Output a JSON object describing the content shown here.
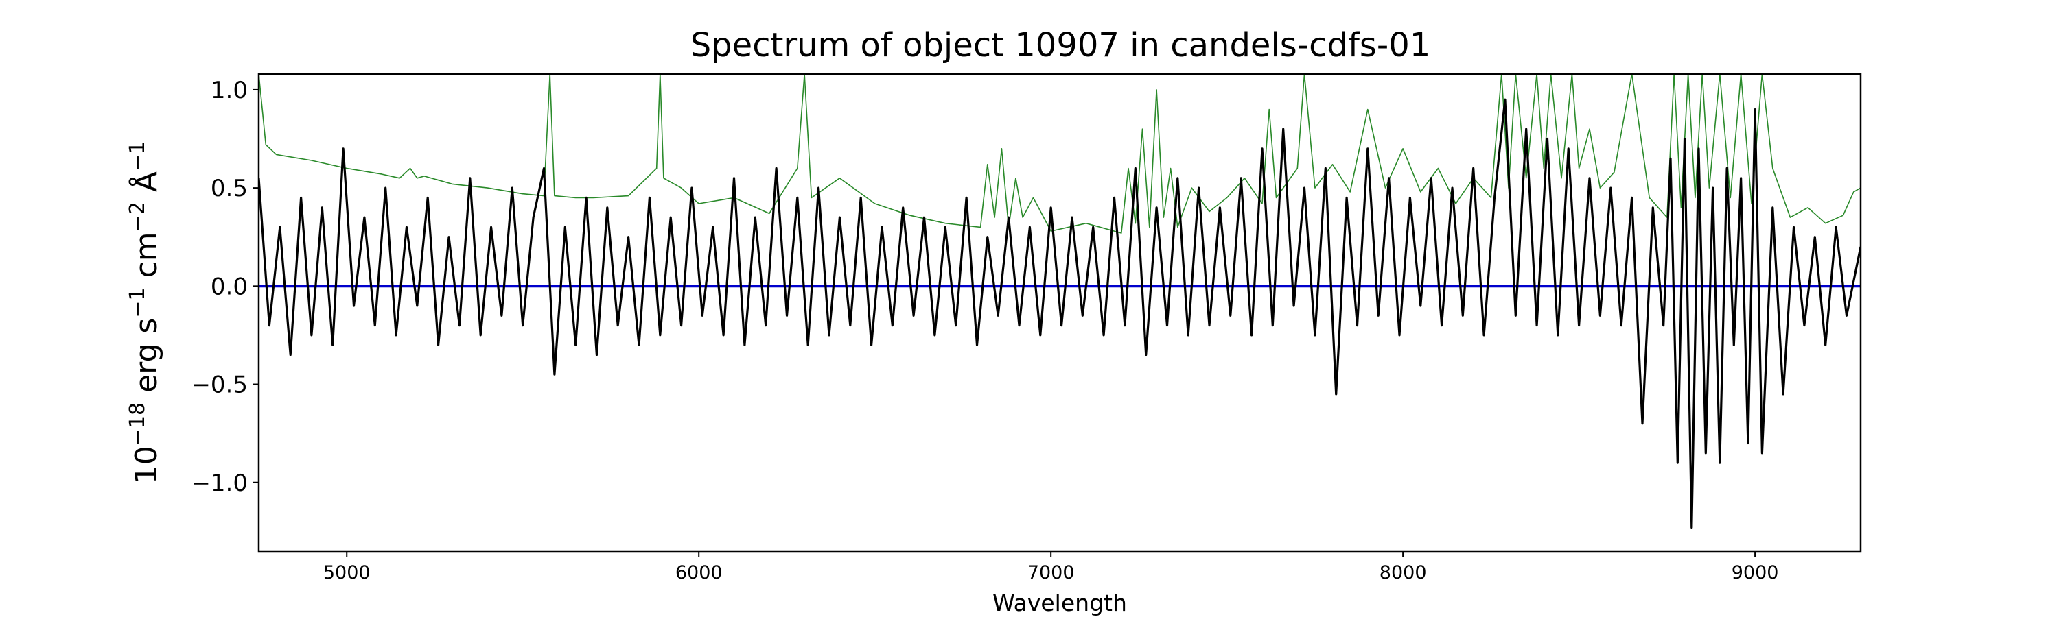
{
  "chart_data": {
    "type": "line",
    "title": "Spectrum of object 10907 in candels-cdfs-01",
    "xlabel": "Wavelength",
    "ylabel": {
      "prefix": "10",
      "exp1": "−18",
      "mid1": " erg s",
      "exp2": "−1",
      "mid2": " cm",
      "exp3": "−2",
      "mid3": " Å",
      "exp4": "−1"
    },
    "xlim": [
      4750,
      9300
    ],
    "ylim": [
      -1.35,
      1.08
    ],
    "x_ticks": [
      5000,
      6000,
      7000,
      8000,
      9000
    ],
    "x_tick_labels": [
      "5000",
      "6000",
      "7000",
      "8000",
      "9000"
    ],
    "y_ticks": [
      1.0,
      0.5,
      0.0,
      -0.5,
      -1.0
    ],
    "y_tick_labels": [
      "1.0",
      "0.5",
      "0.0",
      "−0.5",
      "−1.0"
    ],
    "grid": false,
    "colors": {
      "flux": "#000000",
      "error": "#2a8a2a",
      "model": "#0000cc"
    },
    "series": [
      {
        "key": "error",
        "x": [
          4750,
          4770,
          4800,
          4900,
          5000,
          5100,
          5150,
          5180,
          5200,
          5220,
          5300,
          5400,
          5500,
          5560,
          5577,
          5590,
          5650,
          5700,
          5800,
          5880,
          5890,
          5900,
          5950,
          6000,
          6100,
          6200,
          6280,
          6300,
          6320,
          6400,
          6500,
          6600,
          6700,
          6800,
          6820,
          6840,
          6860,
          6880,
          6900,
          6920,
          6950,
          7000,
          7100,
          7200,
          7220,
          7240,
          7260,
          7280,
          7300,
          7320,
          7340,
          7360,
          7400,
          7450,
          7500,
          7550,
          7600,
          7620,
          7640,
          7700,
          7720,
          7750,
          7800,
          7850,
          7900,
          7950,
          8000,
          8050,
          8100,
          8150,
          8200,
          8250,
          8280,
          8300,
          8320,
          8350,
          8380,
          8400,
          8420,
          8450,
          8480,
          8500,
          8530,
          8560,
          8600,
          8650,
          8700,
          8750,
          8770,
          8790,
          8810,
          8830,
          8850,
          8870,
          8900,
          8930,
          8960,
          8990,
          9020,
          9050,
          9100,
          9150,
          9200,
          9250,
          9280,
          9300
        ],
        "y": [
          1.08,
          0.72,
          0.67,
          0.64,
          0.6,
          0.57,
          0.55,
          0.6,
          0.55,
          0.56,
          0.52,
          0.5,
          0.47,
          0.46,
          1.08,
          0.46,
          0.45,
          0.45,
          0.46,
          0.6,
          1.08,
          0.55,
          0.5,
          0.42,
          0.45,
          0.37,
          0.6,
          1.08,
          0.45,
          0.55,
          0.42,
          0.36,
          0.32,
          0.3,
          0.62,
          0.35,
          0.7,
          0.3,
          0.55,
          0.35,
          0.45,
          0.28,
          0.32,
          0.27,
          0.6,
          0.32,
          0.8,
          0.3,
          1.0,
          0.35,
          0.6,
          0.3,
          0.5,
          0.38,
          0.45,
          0.55,
          0.42,
          0.9,
          0.45,
          0.6,
          1.08,
          0.5,
          0.62,
          0.48,
          0.9,
          0.5,
          0.7,
          0.48,
          0.6,
          0.42,
          0.55,
          0.45,
          1.08,
          0.5,
          1.08,
          0.55,
          1.08,
          0.6,
          1.08,
          0.55,
          1.08,
          0.6,
          0.8,
          0.5,
          0.58,
          1.08,
          0.45,
          0.35,
          1.08,
          0.4,
          1.08,
          0.45,
          1.08,
          0.5,
          1.08,
          0.45,
          1.08,
          0.42,
          1.08,
          0.6,
          0.35,
          0.4,
          0.32,
          0.36,
          0.48,
          0.5
        ]
      },
      {
        "key": "model",
        "x": [
          4750,
          9300
        ],
        "y": [
          0.0,
          0.0
        ]
      },
      {
        "key": "flux",
        "x": [
          4750,
          4780,
          4810,
          4840,
          4870,
          4900,
          4930,
          4960,
          4990,
          5020,
          5050,
          5080,
          5110,
          5140,
          5170,
          5200,
          5230,
          5260,
          5290,
          5320,
          5350,
          5380,
          5410,
          5440,
          5470,
          5500,
          5530,
          5560,
          5590,
          5620,
          5650,
          5680,
          5710,
          5740,
          5770,
          5800,
          5830,
          5860,
          5890,
          5920,
          5950,
          5980,
          6010,
          6040,
          6070,
          6100,
          6130,
          6160,
          6190,
          6220,
          6250,
          6280,
          6310,
          6340,
          6370,
          6400,
          6430,
          6460,
          6490,
          6520,
          6550,
          6580,
          6610,
          6640,
          6670,
          6700,
          6730,
          6760,
          6790,
          6820,
          6850,
          6880,
          6910,
          6940,
          6970,
          7000,
          7030,
          7060,
          7090,
          7120,
          7150,
          7180,
          7210,
          7240,
          7270,
          7300,
          7330,
          7360,
          7390,
          7420,
          7450,
          7480,
          7510,
          7540,
          7570,
          7600,
          7630,
          7660,
          7690,
          7720,
          7750,
          7780,
          7810,
          7840,
          7870,
          7900,
          7930,
          7960,
          7990,
          8020,
          8050,
          8080,
          8110,
          8140,
          8170,
          8200,
          8230,
          8260,
          8290,
          8320,
          8350,
          8380,
          8410,
          8440,
          8470,
          8500,
          8530,
          8560,
          8590,
          8620,
          8650,
          8680,
          8710,
          8740,
          8760,
          8780,
          8800,
          8820,
          8840,
          8860,
          8880,
          8900,
          8920,
          8940,
          8960,
          8980,
          9000,
          9020,
          9050,
          9080,
          9110,
          9140,
          9170,
          9200,
          9230,
          9260,
          9300
        ],
        "y": [
          0.55,
          -0.2,
          0.3,
          -0.35,
          0.45,
          -0.25,
          0.4,
          -0.3,
          0.7,
          -0.1,
          0.35,
          -0.2,
          0.5,
          -0.25,
          0.3,
          -0.1,
          0.45,
          -0.3,
          0.25,
          -0.2,
          0.55,
          -0.25,
          0.3,
          -0.15,
          0.5,
          -0.2,
          0.35,
          0.6,
          -0.45,
          0.3,
          -0.3,
          0.45,
          -0.35,
          0.4,
          -0.2,
          0.25,
          -0.3,
          0.45,
          -0.25,
          0.35,
          -0.2,
          0.5,
          -0.15,
          0.3,
          -0.25,
          0.55,
          -0.3,
          0.35,
          -0.2,
          0.6,
          -0.15,
          0.45,
          -0.3,
          0.5,
          -0.25,
          0.35,
          -0.2,
          0.45,
          -0.3,
          0.3,
          -0.2,
          0.4,
          -0.15,
          0.35,
          -0.25,
          0.3,
          -0.2,
          0.45,
          -0.3,
          0.25,
          -0.15,
          0.35,
          -0.2,
          0.3,
          -0.25,
          0.4,
          -0.2,
          0.35,
          -0.15,
          0.3,
          -0.25,
          0.45,
          -0.2,
          0.6,
          -0.35,
          0.4,
          -0.2,
          0.55,
          -0.25,
          0.5,
          -0.2,
          0.4,
          -0.15,
          0.55,
          -0.25,
          0.7,
          -0.2,
          0.8,
          -0.1,
          0.5,
          -0.25,
          0.6,
          -0.55,
          0.45,
          -0.2,
          0.7,
          -0.15,
          0.55,
          -0.25,
          0.45,
          -0.1,
          0.55,
          -0.2,
          0.5,
          -0.15,
          0.6,
          -0.25,
          0.45,
          0.95,
          -0.15,
          0.8,
          -0.2,
          0.75,
          -0.25,
          0.7,
          -0.2,
          0.55,
          -0.15,
          0.5,
          -0.2,
          0.45,
          -0.7,
          0.4,
          -0.2,
          0.65,
          -0.9,
          0.75,
          -1.23,
          0.7,
          -0.85,
          0.5,
          -0.9,
          0.6,
          -0.3,
          0.55,
          -0.8,
          0.9,
          -0.85,
          0.4,
          -0.55,
          0.3,
          -0.2,
          0.25,
          -0.3,
          0.3,
          -0.15,
          0.2
        ]
      }
    ]
  }
}
